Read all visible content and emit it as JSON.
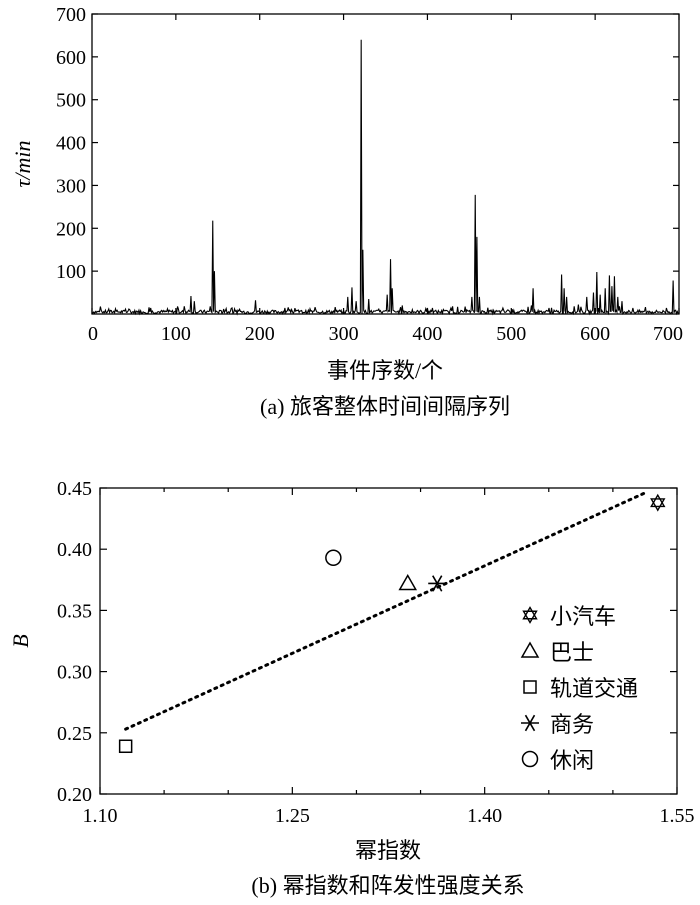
{
  "chart_data": [
    {
      "type": "line",
      "panel_caption": "(a) 旅客整体时间间隔序列",
      "xlabel": "事件序数/个",
      "ylabel": "τ/min",
      "xlim": [
        0,
        700
      ],
      "ylim": [
        0,
        700
      ],
      "xticks": [
        0,
        100,
        200,
        300,
        400,
        500,
        600,
        700
      ],
      "yticks": [
        100,
        200,
        300,
        400,
        500,
        600,
        700
      ],
      "grid": false,
      "baseline_level": 5,
      "spikes": [
        {
          "x": 20,
          "y": 12
        },
        {
          "x": 45,
          "y": 10
        },
        {
          "x": 70,
          "y": 14
        },
        {
          "x": 90,
          "y": 12
        },
        {
          "x": 110,
          "y": 18
        },
        {
          "x": 118,
          "y": 42
        },
        {
          "x": 122,
          "y": 30
        },
        {
          "x": 141,
          "y": 18
        },
        {
          "x": 144,
          "y": 218
        },
        {
          "x": 146,
          "y": 100
        },
        {
          "x": 170,
          "y": 12
        },
        {
          "x": 195,
          "y": 32
        },
        {
          "x": 230,
          "y": 14
        },
        {
          "x": 260,
          "y": 12
        },
        {
          "x": 290,
          "y": 16
        },
        {
          "x": 305,
          "y": 40
        },
        {
          "x": 310,
          "y": 62
        },
        {
          "x": 315,
          "y": 30
        },
        {
          "x": 321,
          "y": 640
        },
        {
          "x": 323,
          "y": 150
        },
        {
          "x": 330,
          "y": 35
        },
        {
          "x": 352,
          "y": 45
        },
        {
          "x": 356,
          "y": 128
        },
        {
          "x": 358,
          "y": 60
        },
        {
          "x": 370,
          "y": 20
        },
        {
          "x": 400,
          "y": 14
        },
        {
          "x": 430,
          "y": 18
        },
        {
          "x": 453,
          "y": 40
        },
        {
          "x": 457,
          "y": 278
        },
        {
          "x": 459,
          "y": 180
        },
        {
          "x": 462,
          "y": 40
        },
        {
          "x": 490,
          "y": 14
        },
        {
          "x": 524,
          "y": 20
        },
        {
          "x": 526,
          "y": 60
        },
        {
          "x": 545,
          "y": 14
        },
        {
          "x": 560,
          "y": 92
        },
        {
          "x": 563,
          "y": 60
        },
        {
          "x": 566,
          "y": 40
        },
        {
          "x": 580,
          "y": 22
        },
        {
          "x": 590,
          "y": 40
        },
        {
          "x": 598,
          "y": 50
        },
        {
          "x": 602,
          "y": 98
        },
        {
          "x": 606,
          "y": 45
        },
        {
          "x": 612,
          "y": 60
        },
        {
          "x": 617,
          "y": 90
        },
        {
          "x": 620,
          "y": 65
        },
        {
          "x": 623,
          "y": 88
        },
        {
          "x": 627,
          "y": 40
        },
        {
          "x": 632,
          "y": 30
        },
        {
          "x": 645,
          "y": 14
        },
        {
          "x": 660,
          "y": 16
        },
        {
          "x": 685,
          "y": 14
        },
        {
          "x": 693,
          "y": 78
        }
      ]
    },
    {
      "type": "scatter",
      "panel_caption": "(b) 幂指数和阵发性强度关系",
      "xlabel": "幂指数",
      "ylabel": "B",
      "xlim": [
        1.1,
        1.55
      ],
      "ylim": [
        0.2,
        0.45
      ],
      "xticks": [
        "1.10",
        "1.25",
        "1.40",
        "1.55"
      ],
      "xtick_values": [
        1.1,
        1.25,
        1.4,
        1.55
      ],
      "yticks": [
        "0.20",
        "0.25",
        "0.30",
        "0.35",
        "0.40",
        "0.45"
      ],
      "ytick_values": [
        0.2,
        0.25,
        0.3,
        0.35,
        0.4,
        0.45
      ],
      "grid": false,
      "legend_position": "lower-right",
      "series": [
        {
          "name": "小汽车",
          "marker": "star6",
          "x": 1.535,
          "y": 0.438
        },
        {
          "name": "巴士",
          "marker": "triangle",
          "x": 1.34,
          "y": 0.372
        },
        {
          "name": "轨道交通",
          "marker": "square",
          "x": 1.12,
          "y": 0.239
        },
        {
          "name": "商务",
          "marker": "asterisk",
          "x": 1.363,
          "y": 0.372
        },
        {
          "name": "休闲",
          "marker": "circle",
          "x": 1.282,
          "y": 0.393
        }
      ],
      "trendline": {
        "style": "dotted",
        "x": [
          1.12,
          1.525
        ],
        "y": [
          0.253,
          0.446
        ]
      }
    }
  ]
}
